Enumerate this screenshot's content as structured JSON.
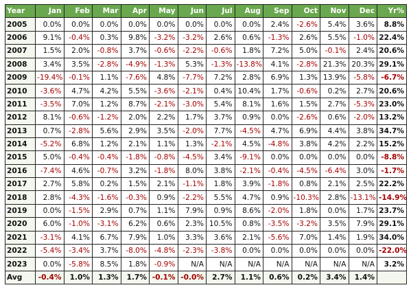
{
  "header": [
    "Year",
    "Jan",
    "Feb",
    "Mar",
    "Apr",
    "May",
    "Jun",
    "Jul",
    "Aug",
    "Sep",
    "Oct",
    "Nov",
    "Dec",
    "Yr%"
  ],
  "rows": [
    [
      "2005",
      "0.0%",
      "0.0%",
      "0.0%",
      "0.0%",
      "0.0%",
      "0.0%",
      "0.0%",
      "0.0%",
      "2.4%",
      "-2.6%",
      "5.4%",
      "3.6%",
      "8.8%"
    ],
    [
      "2006",
      "9.1%",
      "-0.4%",
      "0.3%",
      "9.8%",
      "-3.2%",
      "-3.2%",
      "2.6%",
      "0.6%",
      "-1.3%",
      "2.6%",
      "5.5%",
      "-1.0%",
      "22.4%"
    ],
    [
      "2007",
      "1.5%",
      "2.0%",
      "-0.8%",
      "3.7%",
      "-0.6%",
      "-2.2%",
      "-0.6%",
      "1.8%",
      "7.2%",
      "5.0%",
      "-0.1%",
      "2.4%",
      "20.6%"
    ],
    [
      "2008",
      "3.4%",
      "3.5%",
      "-2.8%",
      "-4.9%",
      "-1.3%",
      "5.3%",
      "-1.3%",
      "-13.8%",
      "4.1%",
      "-2.8%",
      "21.3%",
      "20.3%",
      "29.1%"
    ],
    [
      "2009",
      "-19.4%",
      "-0.1%",
      "1.1%",
      "-7.6%",
      "4.8%",
      "-7.7%",
      "7.2%",
      "2.8%",
      "6.9%",
      "1.3%",
      "13.9%",
      "-5.8%",
      "-6.7%"
    ],
    [
      "2010",
      "-3.6%",
      "4.7%",
      "4.2%",
      "5.5%",
      "-3.6%",
      "-2.1%",
      "0.4%",
      "10.4%",
      "1.7%",
      "-0.6%",
      "0.2%",
      "2.7%",
      "20.6%"
    ],
    [
      "2011",
      "-3.5%",
      "7.0%",
      "1.2%",
      "8.7%",
      "-2.1%",
      "-3.0%",
      "5.4%",
      "8.1%",
      "1.6%",
      "1.5%",
      "2.7%",
      "-5.3%",
      "23.0%"
    ],
    [
      "2012",
      "8.1%",
      "-0.6%",
      "-1.2%",
      "2.0%",
      "2.2%",
      "1.7%",
      "3.7%",
      "0.9%",
      "0.0%",
      "-2.6%",
      "0.6%",
      "-2.0%",
      "13.2%"
    ],
    [
      "2013",
      "0.7%",
      "-2.8%",
      "5.6%",
      "2.9%",
      "3.5%",
      "-2.0%",
      "7.7%",
      "-4.5%",
      "4.7%",
      "6.9%",
      "4.4%",
      "3.8%",
      "34.7%"
    ],
    [
      "2014",
      "-5.2%",
      "6.8%",
      "1.2%",
      "2.1%",
      "1.1%",
      "1.3%",
      "-2.1%",
      "4.5%",
      "-4.8%",
      "3.8%",
      "4.2%",
      "2.2%",
      "15.2%"
    ],
    [
      "2015",
      "5.0%",
      "-0.4%",
      "-0.4%",
      "-1.8%",
      "-0.8%",
      "-4.5%",
      "3.4%",
      "-9.1%",
      "0.0%",
      "0.0%",
      "0.0%",
      "0.0%",
      "-8.8%"
    ],
    [
      "2016",
      "-7.4%",
      "4.6%",
      "-0.7%",
      "3.2%",
      "-1.8%",
      "8.0%",
      "3.8%",
      "-2.1%",
      "-0.4%",
      "-4.5%",
      "-6.4%",
      "3.0%",
      "-1.7%"
    ],
    [
      "2017",
      "2.7%",
      "5.8%",
      "0.2%",
      "1.5%",
      "2.1%",
      "-1.1%",
      "1.8%",
      "3.9%",
      "-1.8%",
      "0.8%",
      "2.1%",
      "2.5%",
      "22.2%"
    ],
    [
      "2018",
      "2.8%",
      "-4.3%",
      "-1.6%",
      "-0.3%",
      "0.9%",
      "-2.2%",
      "5.5%",
      "4.7%",
      "0.9%",
      "-10.3%",
      "2.8%",
      "-13.1%",
      "-14.9%"
    ],
    [
      "2019",
      "0.0%",
      "-1.5%",
      "2.9%",
      "0.7%",
      "1.1%",
      "7.9%",
      "0.9%",
      "8.6%",
      "-2.0%",
      "1.8%",
      "0.0%",
      "1.7%",
      "23.7%"
    ],
    [
      "2020",
      "6.0%",
      "-1.0%",
      "-3.1%",
      "6.2%",
      "0.6%",
      "2.3%",
      "10.5%",
      "0.8%",
      "-3.5%",
      "-3.2%",
      "3.5%",
      "7.9%",
      "29.1%"
    ],
    [
      "2021",
      "-3.1%",
      "4.1%",
      "6.7%",
      "7.9%",
      "1.0%",
      "3.3%",
      "3.6%",
      "2.1%",
      "-5.6%",
      "7.0%",
      "1.4%",
      "1.9%",
      "34.0%"
    ],
    [
      "2022",
      "-5.4%",
      "-3.4%",
      "3.7%",
      "-8.0%",
      "-4.8%",
      "-2.3%",
      "-3.8%",
      "0.0%",
      "0.0%",
      "0.0%",
      "0.0%",
      "0.0%",
      "-22.0%"
    ],
    [
      "2023",
      "0.0%",
      "-5.8%",
      "8.5%",
      "1.8%",
      "-0.9%",
      "N/A",
      "N/A",
      "N/A",
      "N/A",
      "N/A",
      "N/A",
      "N/A",
      "3.2%"
    ]
  ],
  "avg": [
    "Avg",
    "-0.4%",
    "1.0%",
    "1.3%",
    "1.7%",
    "-0.1%",
    "-0.0%",
    "2.7%",
    "1.1%",
    "0.6%",
    "0.2%",
    "3.4%",
    "1.4%",
    ""
  ],
  "colors": {
    "header_bg": "#6aa84f",
    "negative": "#a30000",
    "positive": "#111111"
  }
}
